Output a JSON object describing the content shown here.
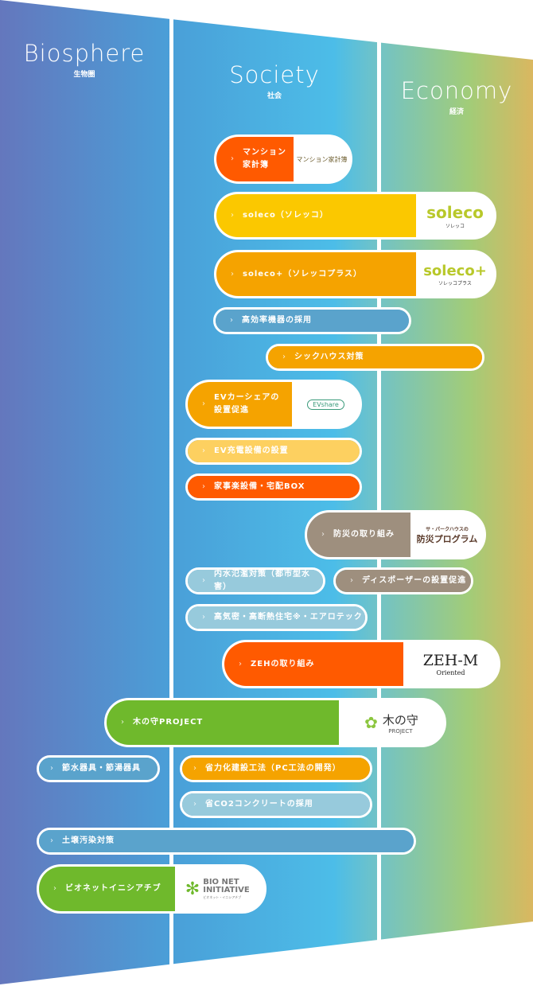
{
  "columns": [
    {
      "en": "Biosphere",
      "jp": "生物圏"
    },
    {
      "en": "Society",
      "jp": "社会"
    },
    {
      "en": "Economy",
      "jp": "経済"
    }
  ],
  "colors": {
    "orange": "#ff5a00",
    "yellow": "#fbc800",
    "amber": "#f5a300",
    "blue": "#5aa3cc",
    "lightblue": "#97cadc",
    "paleyellow": "#fdd060",
    "taupe": "#9e8f7e",
    "green": "#6fb92c"
  },
  "items": [
    {
      "label1": "マンション",
      "label2": "家計簿",
      "logo": "マンション家計簿"
    },
    {
      "label": "soleco（ソレッコ）",
      "logo": "soleco",
      "logo_sub": "ソレッコ"
    },
    {
      "label": "soleco+（ソレッコプラス）",
      "logo": "soleco+",
      "logo_sub": "ソレッコプラス"
    },
    {
      "label": "高効率機器の採用"
    },
    {
      "label": "シックハウス対策"
    },
    {
      "label1": "EVカーシェアの",
      "label2": "設置促進",
      "logo": "EVshare"
    },
    {
      "label": "EV充電設備の設置"
    },
    {
      "label": "家事楽設備・宅配BOX"
    },
    {
      "label": "防災の取り組み",
      "logo_sub": "サ・パークハウスの",
      "logo": "防災プログラム"
    },
    {
      "label": "内水氾濫対策（都市型水害）"
    },
    {
      "label": "ディスポーザーの設置促進"
    },
    {
      "label": "高気密・高断熱住宅※・エアロテック"
    },
    {
      "label": "ZEHの取り組み",
      "logo": "ZEH-M",
      "logo_sub": "Oriented"
    },
    {
      "label": "木の守PROJECT",
      "logo": "木の守",
      "logo_sub": "PROJECT"
    },
    {
      "label": "節水器具・節湯器具"
    },
    {
      "label": "省力化建設工法（PC工法の開発）"
    },
    {
      "label": "省CO2コンクリートの採用"
    },
    {
      "label": "土壌汚染対策"
    },
    {
      "label": "ビオネットイニシアチブ",
      "logo": "BIO NET INITIATIVE",
      "logo_sub": "ビオネット・イニシアチブ"
    }
  ]
}
